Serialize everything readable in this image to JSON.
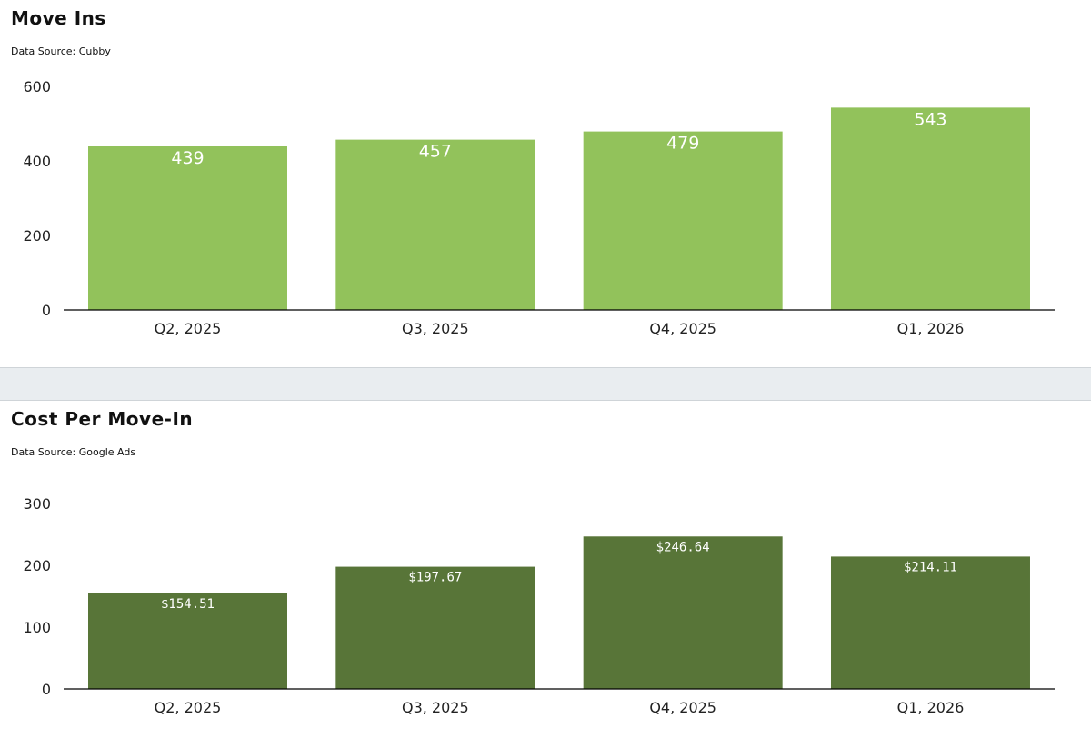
{
  "chart_data": [
    {
      "type": "bar",
      "title": "Move Ins",
      "subtitle": "Data Source: Cubby",
      "categories": [
        "Q2, 2025",
        "Q3, 2025",
        "Q4, 2025",
        "Q1, 2026"
      ],
      "values": [
        439,
        457,
        479,
        543
      ],
      "value_labels": [
        "439",
        "457",
        "479",
        "543"
      ],
      "ylim": [
        0,
        600
      ],
      "yticks": [
        0,
        200,
        400,
        600
      ],
      "ytick_labels": [
        "0",
        "200",
        "400",
        "600"
      ],
      "xlabel": "",
      "ylabel": "",
      "bar_color": "#92c25b",
      "grid": false
    },
    {
      "type": "bar",
      "title": "Cost Per Move-In",
      "subtitle": "Data Source: Google Ads",
      "categories": [
        "Q2, 2025",
        "Q3, 2025",
        "Q4, 2025",
        "Q1, 2026"
      ],
      "values": [
        154.51,
        197.67,
        246.64,
        214.11
      ],
      "value_labels": [
        "$154.51",
        "$197.67",
        "$246.64",
        "$214.11"
      ],
      "ylim": [
        0,
        300
      ],
      "yticks": [
        0,
        100,
        200,
        300
      ],
      "ytick_labels": [
        "0",
        "100",
        "200",
        "300"
      ],
      "xlabel": "",
      "ylabel": "",
      "bar_color": "#587538",
      "grid": false
    }
  ]
}
